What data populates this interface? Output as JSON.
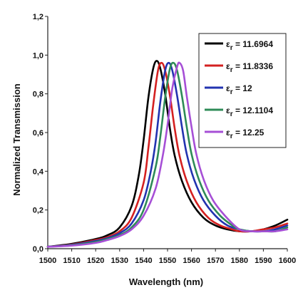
{
  "chart_data": {
    "type": "line",
    "xlabel": "Wavelength (nm)",
    "ylabel": "Normalized Transmission",
    "xlim": [
      1500,
      1600
    ],
    "ylim": [
      0,
      1.2
    ],
    "xticks": [
      "1500",
      "1510",
      "1520",
      "1530",
      "1540",
      "1550",
      "1560",
      "1570",
      "1580",
      "1590",
      "1600"
    ],
    "yticks": [
      "0,0",
      "0,2",
      "0,4",
      "0,6",
      "0,8",
      "1,0",
      "1,2"
    ],
    "legend_position": "top-right",
    "grid": false,
    "series": [
      {
        "name": "11.6964",
        "color": "#000000",
        "x": [
          1500,
          1510,
          1520,
          1525,
          1530,
          1535,
          1538,
          1540,
          1542,
          1544,
          1545.5,
          1547,
          1549,
          1551,
          1553,
          1556,
          1560,
          1565,
          1570,
          1575,
          1580,
          1585,
          1590,
          1595,
          1600
        ],
        "y": [
          0.01,
          0.025,
          0.05,
          0.07,
          0.11,
          0.22,
          0.38,
          0.56,
          0.78,
          0.93,
          0.97,
          0.93,
          0.8,
          0.62,
          0.48,
          0.35,
          0.24,
          0.16,
          0.12,
          0.1,
          0.09,
          0.09,
          0.1,
          0.12,
          0.15
        ]
      },
      {
        "name": "11.8336",
        "color": "#d42020",
        "x": [
          1500,
          1510,
          1520,
          1525,
          1530,
          1535,
          1540,
          1542,
          1544,
          1546,
          1547.5,
          1549,
          1551,
          1553,
          1555,
          1558,
          1562,
          1567,
          1572,
          1577,
          1580,
          1585,
          1590,
          1595,
          1600
        ],
        "y": [
          0.01,
          0.022,
          0.045,
          0.06,
          0.09,
          0.16,
          0.34,
          0.52,
          0.74,
          0.92,
          0.96,
          0.92,
          0.79,
          0.62,
          0.48,
          0.35,
          0.24,
          0.16,
          0.12,
          0.1,
          0.09,
          0.09,
          0.1,
          0.11,
          0.13
        ]
      },
      {
        "name": "12",
        "color": "#2233b0",
        "x": [
          1500,
          1510,
          1520,
          1525,
          1530,
          1535,
          1540,
          1543,
          1545,
          1547,
          1549,
          1550.5,
          1552,
          1554,
          1556,
          1558,
          1561,
          1565,
          1570,
          1575,
          1580,
          1585,
          1590,
          1595,
          1600
        ],
        "y": [
          0.01,
          0.02,
          0.04,
          0.055,
          0.08,
          0.13,
          0.25,
          0.4,
          0.55,
          0.76,
          0.92,
          0.96,
          0.92,
          0.79,
          0.63,
          0.49,
          0.36,
          0.25,
          0.17,
          0.12,
          0.1,
          0.09,
          0.09,
          0.1,
          0.12
        ]
      },
      {
        "name": "12.1104",
        "color": "#2e8b57",
        "x": [
          1500,
          1510,
          1520,
          1525,
          1530,
          1535,
          1540,
          1545,
          1547,
          1549,
          1551,
          1552.5,
          1554,
          1556,
          1558,
          1560,
          1563,
          1567,
          1572,
          1577,
          1580,
          1585,
          1590,
          1595,
          1600
        ],
        "y": [
          0.01,
          0.018,
          0.035,
          0.05,
          0.07,
          0.11,
          0.2,
          0.42,
          0.58,
          0.78,
          0.93,
          0.96,
          0.92,
          0.79,
          0.63,
          0.49,
          0.36,
          0.25,
          0.17,
          0.12,
          0.1,
          0.09,
          0.09,
          0.09,
          0.11
        ]
      },
      {
        "name": "12.25",
        "color": "#a64fd6",
        "x": [
          1500,
          1510,
          1520,
          1525,
          1530,
          1535,
          1540,
          1545,
          1548,
          1550,
          1552,
          1554,
          1555,
          1556.5,
          1558,
          1560,
          1562,
          1565,
          1569,
          1574,
          1580,
          1585,
          1590,
          1595,
          1600
        ],
        "y": [
          0.01,
          0.016,
          0.03,
          0.045,
          0.065,
          0.1,
          0.17,
          0.31,
          0.48,
          0.64,
          0.83,
          0.94,
          0.96,
          0.92,
          0.79,
          0.63,
          0.49,
          0.36,
          0.25,
          0.17,
          0.1,
          0.09,
          0.09,
          0.09,
          0.1
        ]
      }
    ]
  },
  "legend_symbol": "ε",
  "legend_subscript": "r"
}
